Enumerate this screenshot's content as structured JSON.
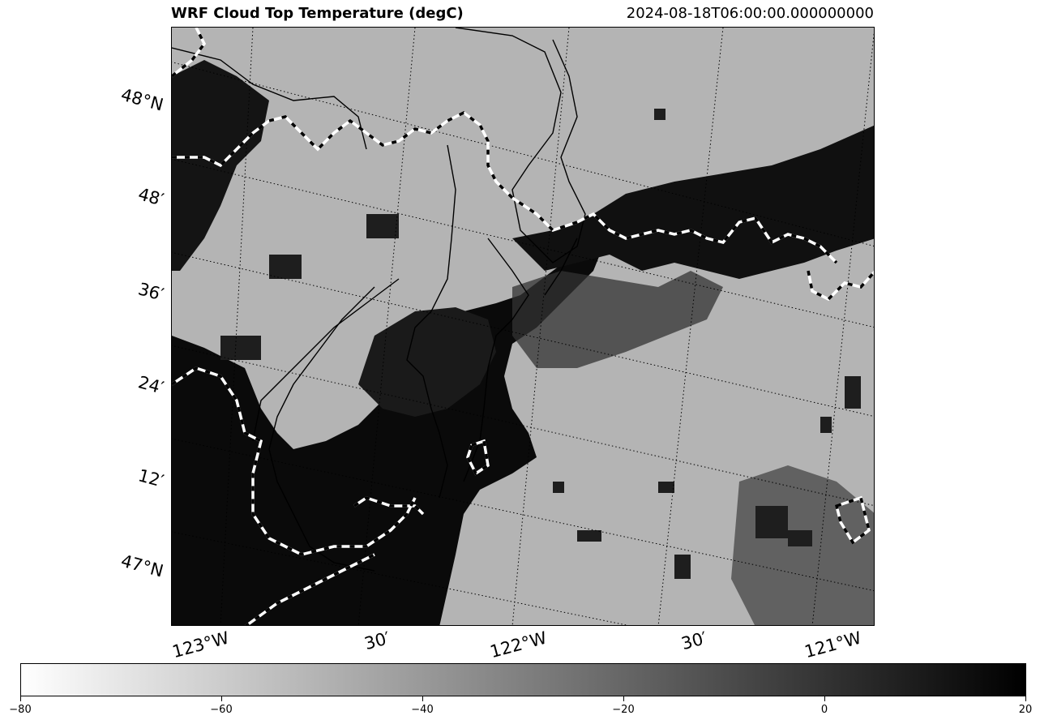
{
  "header": {
    "title": "WRF Cloud Top Temperature (degC)",
    "valid_time": "2024-08-18T06:00:00.000000000"
  },
  "map": {
    "variable": "Cloud Top Temperature",
    "units": "degC",
    "colormap": "Greys",
    "lat_labels": [
      "48°N",
      "48′",
      "36′",
      "24′",
      "12′",
      "47°N"
    ],
    "lon_labels": [
      "123°W",
      "30′",
      "122°W",
      "30′",
      "121°W"
    ],
    "gridlines": "dotted",
    "coastline_style": "solid black",
    "border_style": "white/black dashed"
  },
  "colorbar": {
    "min": -80,
    "max": 20,
    "tick_labels": [
      "−80",
      "−60",
      "−40",
      "−20",
      "0",
      "20"
    ],
    "color_low": "#ffffff",
    "color_high": "#000000"
  }
}
